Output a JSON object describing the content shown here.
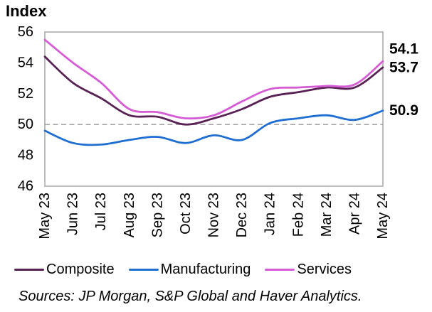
{
  "title": "Index",
  "source": "Sources: JP Morgan, S&P Global and Haver Analytics.",
  "colors": {
    "composite": "#582154",
    "manufacturing": "#1f6fd2",
    "services": "#d55cd5",
    "axis_gray": "#a6a6a6",
    "text": "#000000"
  },
  "chart_data": {
    "type": "line",
    "title": "Index",
    "x": [
      "May 23",
      "Jun 23",
      "Jul 23",
      "Aug 23",
      "Sep 23",
      "Oct 23",
      "Nov 23",
      "Dec 23",
      "Jan 24",
      "Feb 24",
      "Mar 24",
      "Apr 24",
      "May 24"
    ],
    "series": [
      {
        "name": "Composite",
        "color": "#582154",
        "end_label": "53.7",
        "values": [
          54.4,
          52.7,
          51.7,
          50.6,
          50.5,
          50.0,
          50.4,
          51.0,
          51.8,
          52.1,
          52.4,
          52.4,
          53.7
        ]
      },
      {
        "name": "Manufacturing",
        "color": "#1f6fd2",
        "end_label": "50.9",
        "values": [
          49.6,
          48.8,
          48.7,
          49.0,
          49.2,
          48.8,
          49.3,
          49.0,
          50.1,
          50.4,
          50.6,
          50.3,
          50.9
        ]
      },
      {
        "name": "Services",
        "color": "#d55cd5",
        "end_label": "54.1",
        "values": [
          55.5,
          54.0,
          52.7,
          51.0,
          50.8,
          50.4,
          50.6,
          51.5,
          52.3,
          52.4,
          52.5,
          52.6,
          54.1
        ]
      }
    ],
    "ylim": [
      46,
      56
    ],
    "yticks": [
      56,
      54,
      52,
      50,
      48,
      46
    ],
    "reference_line": {
      "value": 50,
      "style": "dashed",
      "color": "#a6a6a6"
    },
    "grid": false,
    "legend_position": "bottom",
    "x_label_rotation": -90
  }
}
